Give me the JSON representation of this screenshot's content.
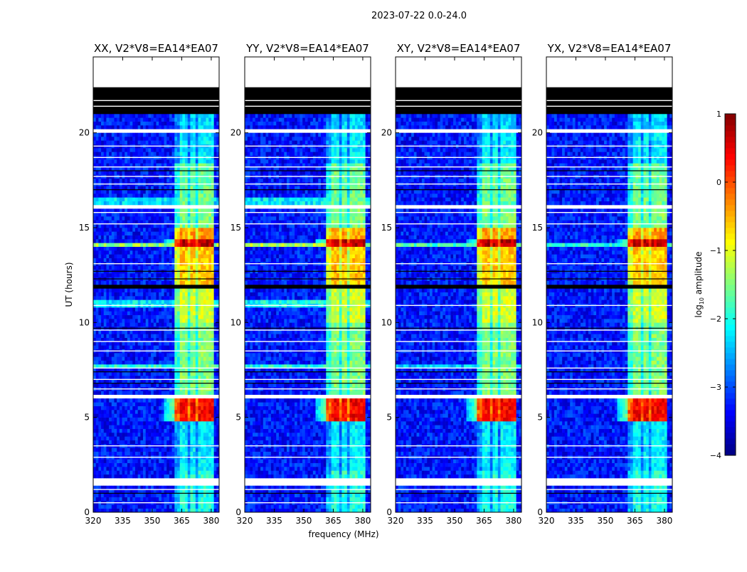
{
  "chart_data": {
    "type": "heatmap",
    "title": "2023-07-22 0.0-24.0",
    "xlabel": "frequency (MHz)",
    "ylabel": "UT (hours)",
    "xlim": [
      320,
      384
    ],
    "ylim": [
      0,
      24
    ],
    "xticks": [
      320,
      335,
      350,
      365,
      380
    ],
    "yticks": [
      0,
      5,
      10,
      15,
      20
    ],
    "colorbar": {
      "label_main": "log",
      "label_sub": "10",
      "label_rest": " amplitude",
      "range": [
        -4,
        1
      ],
      "ticks": [
        -4,
        -3,
        -2,
        -1,
        0,
        1
      ],
      "tick_labels": [
        "−4",
        "−3",
        "−2",
        "−1",
        "0",
        "1"
      ],
      "colormap": "jet"
    },
    "background_log_amplitude": -3.3,
    "rfi_channels_mhz": [
      [
        361,
        364
      ],
      [
        364.5,
        368
      ],
      [
        369,
        372.5
      ],
      [
        373.5,
        377
      ],
      [
        378,
        381
      ]
    ],
    "time_segments": [
      {
        "start": 0.0,
        "end": 1.5,
        "state": "valid",
        "rfi_level": -2.0
      },
      {
        "start": 1.5,
        "end": 1.8,
        "state": "no-data"
      },
      {
        "start": 1.8,
        "end": 2.2,
        "state": "valid",
        "rfi_level": -1.9
      },
      {
        "start": 2.2,
        "end": 4.75,
        "state": "valid",
        "rfi_level": -2.2
      },
      {
        "start": 4.75,
        "end": 4.85,
        "state": "flagged"
      },
      {
        "start": 4.85,
        "end": 6.0,
        "state": "valid",
        "rfi_level": 0.4
      },
      {
        "start": 6.0,
        "end": 6.3,
        "state": "no-data"
      },
      {
        "start": 6.3,
        "end": 10.0,
        "state": "valid",
        "rfi_level": -1.5
      },
      {
        "start": 10.0,
        "end": 11.8,
        "state": "valid",
        "rfi_level": -1.1
      },
      {
        "start": 11.8,
        "end": 12.0,
        "state": "flagged"
      },
      {
        "start": 12.0,
        "end": 14.0,
        "state": "valid",
        "rfi_level": -0.6
      },
      {
        "start": 14.0,
        "end": 14.4,
        "state": "valid",
        "rfi_level": 0.7
      },
      {
        "start": 14.4,
        "end": 15.0,
        "state": "valid",
        "rfi_level": -0.4
      },
      {
        "start": 15.0,
        "end": 16.0,
        "state": "valid",
        "rfi_level": -1.5
      },
      {
        "start": 16.0,
        "end": 16.3,
        "state": "no-data"
      },
      {
        "start": 16.3,
        "end": 18.5,
        "state": "valid",
        "rfi_level": -1.6
      },
      {
        "start": 18.5,
        "end": 20.0,
        "state": "valid",
        "rfi_level": -2.2
      },
      {
        "start": 20.0,
        "end": 20.15,
        "state": "no-data"
      },
      {
        "start": 20.15,
        "end": 21.0,
        "state": "valid",
        "rfi_level": -2.3
      },
      {
        "start": 21.0,
        "end": 22.5,
        "state": "flagged"
      },
      {
        "start": 22.5,
        "end": 24.0,
        "state": "no-data"
      }
    ],
    "no_data_lines_hours": [
      0.5,
      1.2,
      2.9,
      3.5,
      6.5,
      7.0,
      7.6,
      8.5,
      9.0,
      9.6,
      10.9,
      13.1,
      15.2,
      15.8,
      17.3,
      17.7,
      18.2,
      18.7,
      19.3,
      21.4,
      21.7
    ],
    "flagged_lines_hours": [
      1.0,
      6.8,
      7.4,
      9.7,
      12.3,
      12.7,
      17.0,
      18.0
    ],
    "panels": [
      {
        "title": "XX, V2*V8=EA14*EA07",
        "background_bands": [
          {
            "start": 10.9,
            "end": 11.3,
            "level": -2.2
          },
          {
            "start": 13.95,
            "end": 14.2,
            "level": -1.4
          },
          {
            "start": 16.3,
            "end": 16.7,
            "level": -2.3
          },
          {
            "start": 7.65,
            "end": 7.75,
            "level": -2.0
          },
          {
            "start": 11.9,
            "end": 12.05,
            "level": -2.1
          }
        ]
      },
      {
        "title": "YY, V2*V8=EA14*EA07",
        "background_bands": [
          {
            "start": 10.9,
            "end": 11.3,
            "level": -2.1
          },
          {
            "start": 13.95,
            "end": 14.2,
            "level": -1.3
          },
          {
            "start": 16.3,
            "end": 16.7,
            "level": -2.2
          },
          {
            "start": 7.65,
            "end": 7.75,
            "level": -2.0
          }
        ]
      },
      {
        "title": "XY, V2*V8=EA14*EA07",
        "background_bands": [
          {
            "start": 13.95,
            "end": 14.15,
            "level": -1.8
          },
          {
            "start": 7.65,
            "end": 7.75,
            "level": -2.4
          }
        ]
      },
      {
        "title": "YX, V2*V8=EA14*EA07",
        "background_bands": [
          {
            "start": 13.95,
            "end": 14.15,
            "level": -2.0
          }
        ]
      }
    ]
  }
}
